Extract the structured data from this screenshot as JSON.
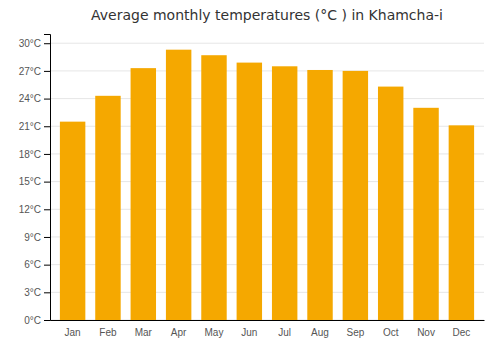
{
  "chart_data": {
    "type": "bar",
    "title": "Average monthly temperatures (°C ) in Khamcha-i",
    "categories": [
      "Jan",
      "Feb",
      "Mar",
      "Apr",
      "May",
      "Jun",
      "Jul",
      "Aug",
      "Sep",
      "Oct",
      "Nov",
      "Dec"
    ],
    "values": [
      21.5,
      24.3,
      27.3,
      29.3,
      28.7,
      27.9,
      27.5,
      27.1,
      27.0,
      25.3,
      23.0,
      21.1
    ],
    "color": "#F5A800",
    "ylim": [
      0,
      31
    ],
    "yticks": [
      {
        "value": 0,
        "label": "0°C"
      },
      {
        "value": 3,
        "label": "3°C"
      },
      {
        "value": 6,
        "label": "6°C"
      },
      {
        "value": 9,
        "label": "9°C"
      },
      {
        "value": 12,
        "label": "12°C"
      },
      {
        "value": 15,
        "label": "15°C"
      },
      {
        "value": 18,
        "label": "18°C"
      },
      {
        "value": 21,
        "label": "21°C"
      },
      {
        "value": 24,
        "label": "24°C"
      },
      {
        "value": 27,
        "label": "27°C"
      },
      {
        "value": 30,
        "label": "30°C"
      }
    ],
    "grid": true
  }
}
